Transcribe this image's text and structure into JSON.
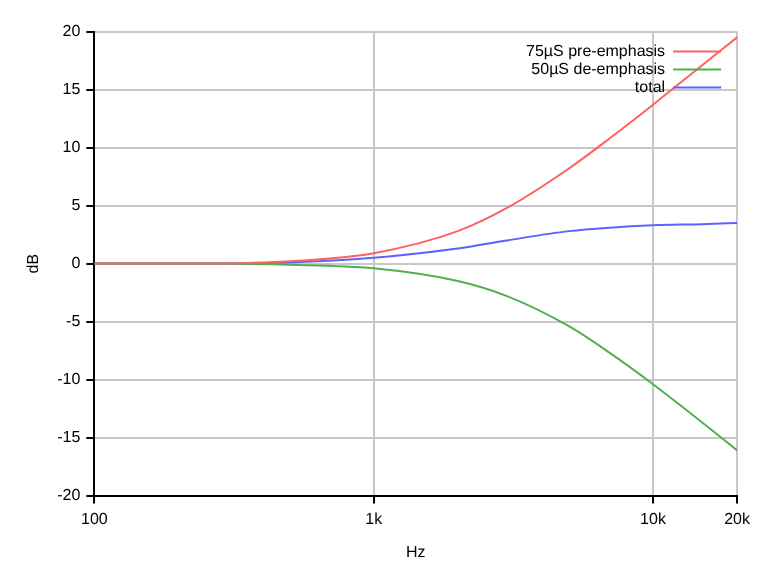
{
  "chart_data": {
    "type": "line",
    "xlabel": "Hz",
    "ylabel": "dB",
    "log": "x",
    "x": [
      100,
      200,
      500,
      1000,
      2000,
      3000,
      5000,
      7000,
      10000,
      15000,
      20000
    ],
    "series": [
      {
        "name": "75µS pre-emphasis",
        "color": "#ff6060",
        "values": [
          0.0,
          0.0,
          0.2,
          0.9,
          2.8,
          4.8,
          8.2,
          10.8,
          13.7,
          17.1,
          19.5
        ]
      },
      {
        "name": "50µS de-emphasis",
        "color": "#50b050",
        "values": [
          0.0,
          0.0,
          -0.1,
          -0.4,
          -1.5,
          -2.8,
          -5.4,
          -7.7,
          -10.4,
          -13.7,
          -16.1
        ]
      },
      {
        "name": "total",
        "color": "#6060ff",
        "values": [
          0.0,
          0.0,
          0.1,
          0.5,
          1.3,
          2.0,
          2.8,
          3.1,
          3.3,
          3.4,
          3.5
        ]
      }
    ],
    "xlim": [
      100,
      20000
    ],
    "xticks": [
      100,
      {
        "value": 1000,
        "label": "1k"
      },
      {
        "value": 10000,
        "label": "10k"
      },
      {
        "value": 20000,
        "label": "20k"
      }
    ],
    "ylim": [
      -20,
      20
    ],
    "yticks": [
      -20,
      -15,
      -10,
      -5,
      0,
      5,
      10,
      15,
      20
    ],
    "grid": true,
    "legend": "top right",
    "marker": "none",
    "line_style": "solid"
  }
}
